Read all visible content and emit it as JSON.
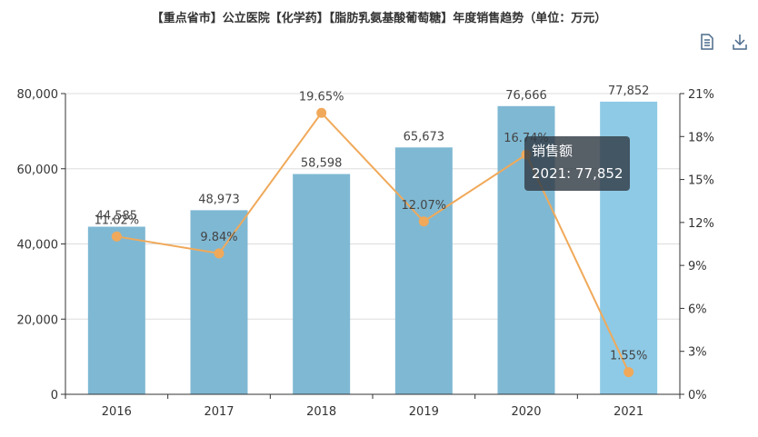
{
  "chart_data": {
    "type": "bar",
    "title": "【重点省市】公立医院【化学药】【脂肪乳氨基酸葡萄糖】年度销售趋势（单位：万元）",
    "categories": [
      "2016",
      "2017",
      "2018",
      "2019",
      "2020",
      "2021"
    ],
    "series": [
      {
        "name": "销售额",
        "type": "bar",
        "axis": "left",
        "values": [
          44585,
          48973,
          58598,
          65673,
          76666,
          77852
        ],
        "labels": [
          "44,585",
          "48,973",
          "58,598",
          "65,673",
          "76,666",
          "77,852"
        ],
        "color": "#7fb8d3",
        "highlight_color": "#8ecae6"
      },
      {
        "type": "line",
        "axis": "right",
        "values": [
          11.02,
          9.84,
          19.65,
          12.07,
          16.74,
          1.55
        ],
        "labels": [
          "11.02%",
          "9.84%",
          "19.65%",
          "12.07%",
          "16.74%",
          "1.55%"
        ],
        "color": "#f0a95a"
      }
    ],
    "ylim_left": [
      0,
      80000
    ],
    "yticks_left": [
      "0",
      "20,000",
      "40,000",
      "60,000",
      "80,000"
    ],
    "ylim_right": [
      0,
      21
    ],
    "yticks_right": [
      "0%",
      "3%",
      "6%",
      "9%",
      "12%",
      "15%",
      "18%",
      "21%"
    ],
    "grid": true,
    "highlighted_index": 5
  },
  "tooltip": {
    "series_name": "销售额",
    "value_text": "2021: 77,852"
  },
  "toolbox": {
    "data_view_icon": "document-icon",
    "save_icon": "download-icon"
  }
}
